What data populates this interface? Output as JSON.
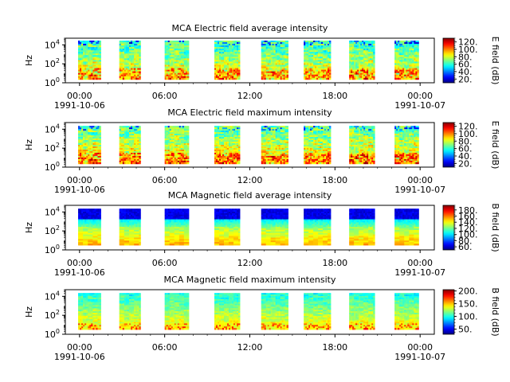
{
  "figure": {
    "bg_color": "#ffffff"
  },
  "chart_data": [
    {
      "type": "heatmap",
      "title": "MCA  Electric field average intensity",
      "ylabel": "Hz",
      "y_scale": "log",
      "ylim_log10": [
        0,
        4.7
      ],
      "y_ticks": [
        {
          "exp": 0,
          "label_base": "10",
          "label_exp": "0"
        },
        {
          "exp": 2,
          "label_base": "10",
          "label_exp": "2"
        },
        {
          "exp": 4,
          "label_base": "10",
          "label_exp": "4"
        }
      ],
      "x_ticks": [
        {
          "hour": 0,
          "time": "00:00",
          "date": "1991-10-06"
        },
        {
          "hour": 6,
          "time": "06:00",
          "date": ""
        },
        {
          "hour": 12,
          "time": "12:00",
          "date": ""
        },
        {
          "hour": 18,
          "time": "18:00",
          "date": ""
        },
        {
          "hour": 24,
          "time": "00:00",
          "date": "1991-10-07"
        }
      ],
      "xlim_hours": [
        -1,
        25
      ],
      "data_segments_hours": [
        [
          -0.1,
          1.5
        ],
        [
          2.8,
          4.3
        ],
        [
          6.0,
          7.7
        ],
        [
          9.5,
          11.3
        ],
        [
          12.8,
          14.7
        ],
        [
          15.8,
          17.7
        ],
        [
          19.0,
          20.8
        ],
        [
          22.2,
          23.9
        ]
      ],
      "colorbar": {
        "label": "E field (dB)",
        "range": [
          10,
          130
        ],
        "ticks": [
          20,
          40,
          60,
          80,
          100,
          120
        ],
        "tick_labels": [
          "20.",
          "40.",
          "60.",
          "80.",
          "100.",
          "120."
        ]
      },
      "profile": "e_avg"
    },
    {
      "type": "heatmap",
      "title": "MCA  Electric field maximum intensity",
      "ylabel": "Hz",
      "y_scale": "log",
      "ylim_log10": [
        0,
        4.7
      ],
      "y_ticks": [
        {
          "exp": 0,
          "label_base": "10",
          "label_exp": "0"
        },
        {
          "exp": 2,
          "label_base": "10",
          "label_exp": "2"
        },
        {
          "exp": 4,
          "label_base": "10",
          "label_exp": "4"
        }
      ],
      "x_ticks": [
        {
          "hour": 0,
          "time": "00:00",
          "date": "1991-10-06"
        },
        {
          "hour": 6,
          "time": "06:00",
          "date": ""
        },
        {
          "hour": 12,
          "time": "12:00",
          "date": ""
        },
        {
          "hour": 18,
          "time": "18:00",
          "date": ""
        },
        {
          "hour": 24,
          "time": "00:00",
          "date": "1991-10-07"
        }
      ],
      "xlim_hours": [
        -1,
        25
      ],
      "data_segments_hours": [
        [
          -0.1,
          1.5
        ],
        [
          2.8,
          4.3
        ],
        [
          6.0,
          7.7
        ],
        [
          9.5,
          11.3
        ],
        [
          12.8,
          14.7
        ],
        [
          15.8,
          17.7
        ],
        [
          19.0,
          20.8
        ],
        [
          22.2,
          23.9
        ]
      ],
      "colorbar": {
        "label": "E field (dB)",
        "range": [
          10,
          130
        ],
        "ticks": [
          20,
          40,
          60,
          80,
          100,
          120
        ],
        "tick_labels": [
          "20.",
          "40.",
          "60.",
          "80.",
          "100.",
          "120."
        ]
      },
      "profile": "e_max"
    },
    {
      "type": "heatmap",
      "title": "MCA  Magnetic field average intensity",
      "ylabel": "Hz",
      "y_scale": "log",
      "ylim_log10": [
        0,
        4.7
      ],
      "y_ticks": [
        {
          "exp": 0,
          "label_base": "10",
          "label_exp": "0"
        },
        {
          "exp": 2,
          "label_base": "10",
          "label_exp": "2"
        },
        {
          "exp": 4,
          "label_base": "10",
          "label_exp": "4"
        }
      ],
      "x_ticks": [
        {
          "hour": 0,
          "time": "00:00",
          "date": "1991-10-06"
        },
        {
          "hour": 6,
          "time": "06:00",
          "date": ""
        },
        {
          "hour": 12,
          "time": "12:00",
          "date": ""
        },
        {
          "hour": 18,
          "time": "18:00",
          "date": ""
        },
        {
          "hour": 24,
          "time": "00:00",
          "date": "1991-10-07"
        }
      ],
      "xlim_hours": [
        -1,
        25
      ],
      "data_segments_hours": [
        [
          -0.1,
          1.5
        ],
        [
          2.8,
          4.3
        ],
        [
          6.0,
          7.7
        ],
        [
          9.5,
          11.3
        ],
        [
          12.8,
          14.7
        ],
        [
          15.8,
          17.7
        ],
        [
          19.0,
          20.8
        ],
        [
          22.2,
          23.9
        ]
      ],
      "colorbar": {
        "label": "B field (dB)",
        "range": [
          50,
          195
        ],
        "ticks": [
          60,
          80,
          100,
          120,
          140,
          160,
          180
        ],
        "tick_labels": [
          "60.",
          "80.",
          "100.",
          "120.",
          "140.",
          "160.",
          "180."
        ]
      },
      "profile": "b_avg"
    },
    {
      "type": "heatmap",
      "title": "MCA  Magnetic field maximum intensity",
      "ylabel": "Hz",
      "y_scale": "log",
      "ylim_log10": [
        0,
        4.7
      ],
      "y_ticks": [
        {
          "exp": 0,
          "label_base": "10",
          "label_exp": "0"
        },
        {
          "exp": 2,
          "label_base": "10",
          "label_exp": "2"
        },
        {
          "exp": 4,
          "label_base": "10",
          "label_exp": "4"
        }
      ],
      "x_ticks": [
        {
          "hour": 0,
          "time": "00:00",
          "date": "1991-10-06"
        },
        {
          "hour": 6,
          "time": "06:00",
          "date": ""
        },
        {
          "hour": 12,
          "time": "12:00",
          "date": ""
        },
        {
          "hour": 18,
          "time": "18:00",
          "date": ""
        },
        {
          "hour": 24,
          "time": "00:00",
          "date": "1991-10-07"
        }
      ],
      "xlim_hours": [
        -1,
        25
      ],
      "data_segments_hours": [
        [
          -0.1,
          1.5
        ],
        [
          2.8,
          4.3
        ],
        [
          6.0,
          7.7
        ],
        [
          9.5,
          11.3
        ],
        [
          12.8,
          14.7
        ],
        [
          15.8,
          17.7
        ],
        [
          19.0,
          20.8
        ],
        [
          22.2,
          23.9
        ]
      ],
      "colorbar": {
        "label": "B field (dB)",
        "range": [
          30,
          205
        ],
        "ticks": [
          50,
          100,
          150,
          200
        ],
        "tick_labels": [
          "50.",
          "100.",
          "150.",
          "200."
        ]
      },
      "profile": "b_max"
    }
  ]
}
